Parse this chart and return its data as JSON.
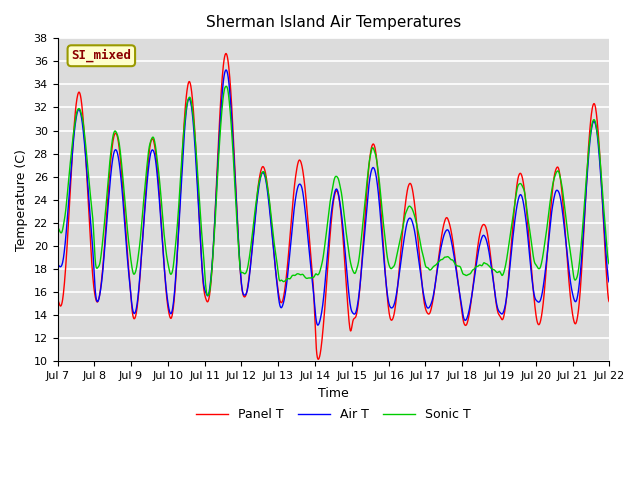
{
  "title": "Sherman Island Air Temperatures",
  "xlabel": "Time",
  "ylabel": "Temperature (C)",
  "ylim": [
    10,
    38
  ],
  "annotation_text": "SI_mixed",
  "bg_color": "#dcdcdc",
  "legend_labels": [
    "Panel T",
    "Air T",
    "Sonic T"
  ],
  "line_colors": [
    "red",
    "blue",
    "#00cc00"
  ],
  "xtick_labels": [
    "Jul 7",
    "Jul 8",
    "Jul 9",
    "Jul 10",
    "Jul 11",
    "Jul 12",
    "Jul 13",
    "Jul 14",
    "Jul 15",
    "Jul 16",
    "Jul 17",
    "Jul 18",
    "Jul 19",
    "Jul 20",
    "Jul 21",
    "Jul 22"
  ],
  "panel_peaks": [
    33.5,
    30.0,
    29.5,
    34.5,
    37.0,
    27.0,
    27.5,
    25.0,
    29.0,
    25.5,
    22.5,
    22.0,
    26.5,
    27.0,
    32.5
  ],
  "panel_troughs": [
    14.5,
    15.0,
    13.5,
    13.5,
    15.0,
    15.5,
    15.0,
    10.0,
    13.5,
    13.5,
    14.0,
    13.0,
    13.5,
    13.0,
    13.0
  ],
  "air_peaks": [
    32.0,
    28.5,
    28.5,
    33.0,
    35.5,
    26.5,
    25.5,
    25.0,
    27.0,
    22.5,
    21.5,
    21.0,
    24.5,
    25.0,
    31.0
  ],
  "air_troughs": [
    18.0,
    15.0,
    14.0,
    14.0,
    15.5,
    15.5,
    14.5,
    13.0,
    14.0,
    14.5,
    14.5,
    13.5,
    14.0,
    15.0,
    15.0
  ],
  "sonic_peaks": [
    32.0,
    30.0,
    29.5,
    33.0,
    34.0,
    26.5,
    17.5,
    26.0,
    28.5,
    23.5,
    19.0,
    18.5,
    25.5,
    26.5,
    31.0
  ],
  "sonic_troughs": [
    21.0,
    18.0,
    17.5,
    17.5,
    15.5,
    17.5,
    17.0,
    17.5,
    17.5,
    18.0,
    18.0,
    17.5,
    17.5,
    18.0,
    17.0
  ],
  "pts_per_day": 144,
  "peak_phase": 0.58,
  "trough_phase": 0.15,
  "title_fontsize": 11,
  "tick_fontsize": 8,
  "axis_fontsize": 9,
  "linewidth": 1.0
}
